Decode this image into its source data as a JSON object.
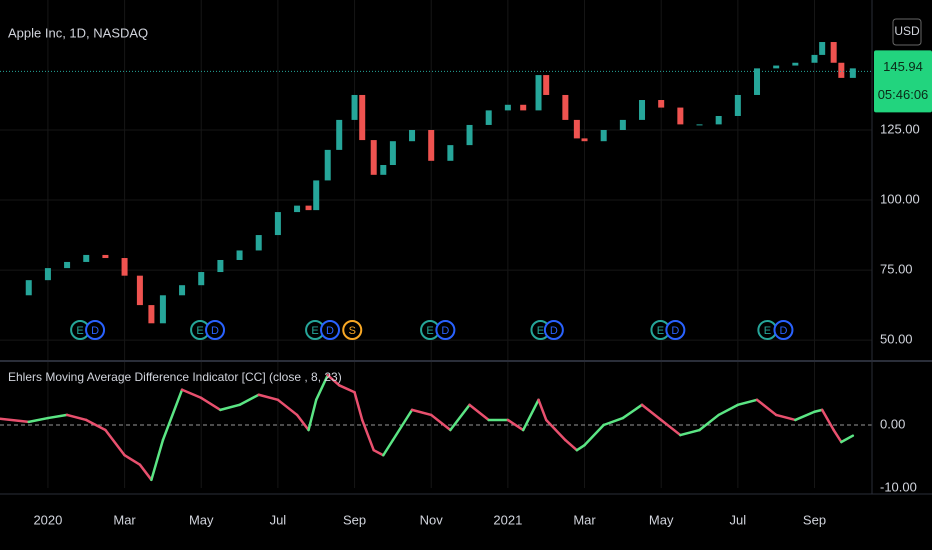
{
  "chart_data": [
    {
      "type": "candlestick",
      "title": "Apple Inc, 1D, NASDAQ",
      "x": [
        -1.25,
        -0.5,
        0,
        0.5,
        1,
        1.5,
        2,
        2.4,
        2.7,
        3,
        3.5,
        4,
        4.5,
        5,
        5.5,
        6,
        6.5,
        6.8,
        7,
        7.3,
        7.6,
        8,
        8.2,
        8.5,
        8.75,
        9,
        9.5,
        10,
        10.5,
        11,
        11.5,
        12,
        12.4,
        12.8,
        13,
        13.5,
        13.8,
        14,
        14.5,
        15,
        15.5,
        16,
        16.5,
        17,
        17.5,
        18,
        18.5,
        19,
        19.5,
        20,
        20.2,
        20.5,
        20.7,
        21
      ],
      "values": [
        66,
        71.4,
        75.7,
        77.9,
        80.4,
        79.3,
        73,
        62.5,
        56,
        66,
        69.6,
        74.3,
        78.6,
        82,
        87.5,
        95.7,
        98,
        96.4,
        107,
        117.9,
        128.6,
        137.5,
        121.4,
        109,
        112.5,
        121,
        125,
        114,
        119.6,
        126.8,
        132,
        134,
        132,
        144.6,
        137.5,
        128.6,
        122,
        121,
        125,
        128.6,
        135.7,
        133,
        127,
        127,
        130,
        137.5,
        147,
        148,
        149,
        151.8,
        156.4,
        149,
        143.6,
        147
      ],
      "up_color": "#26a69a",
      "down_color": "#ef5350",
      "xlim": [
        -1.25,
        21.5
      ],
      "ylim": [
        42.9,
        171.4
      ],
      "yticks": [
        {
          "value": 125,
          "label": "125.00"
        },
        {
          "value": 100,
          "label": "100.00"
        },
        {
          "value": 75,
          "label": "75.00"
        },
        {
          "value": 50,
          "label": "50.00"
        }
      ],
      "grid": true,
      "currency": "USD",
      "last_price": {
        "value": 145.94,
        "label": "145.94"
      },
      "countdown": "05:46:06",
      "events": [
        {
          "x": 0.84,
          "label": "E"
        },
        {
          "x": 1.23,
          "label": "D"
        },
        {
          "x": 3.97,
          "label": "E"
        },
        {
          "x": 4.36,
          "label": "D"
        },
        {
          "x": 6.97,
          "label": "E"
        },
        {
          "x": 7.36,
          "label": "D"
        },
        {
          "x": 7.94,
          "label": "S"
        },
        {
          "x": 9.97,
          "label": "E"
        },
        {
          "x": 10.37,
          "label": "D"
        },
        {
          "x": 12.85,
          "label": "E"
        },
        {
          "x": 13.2,
          "label": "D"
        },
        {
          "x": 15.98,
          "label": "E"
        },
        {
          "x": 16.37,
          "label": "D"
        },
        {
          "x": 18.77,
          "label": "E"
        },
        {
          "x": 19.19,
          "label": "D"
        }
      ],
      "event_colors": {
        "E": "#26a69a",
        "D": "#2962ff",
        "S": "#f9a825"
      }
    },
    {
      "type": "line",
      "title": "Ehlers Moving Average Difference Indicator [CC] (close , 8, 23)",
      "x": [
        -1.25,
        -0.5,
        0,
        0.5,
        1,
        1.5,
        2,
        2.4,
        2.7,
        3,
        3.5,
        4,
        4.5,
        5,
        5.5,
        6,
        6.5,
        6.8,
        7,
        7.3,
        7.6,
        8,
        8.2,
        8.5,
        8.75,
        9,
        9.5,
        10,
        10.5,
        11,
        11.5,
        12,
        12.4,
        12.8,
        13,
        13.5,
        13.8,
        14,
        14.5,
        15,
        15.5,
        16,
        16.5,
        17,
        17.5,
        18,
        18.5,
        19,
        19.5,
        20,
        20.2,
        20.5,
        20.7,
        21
      ],
      "values": [
        1,
        0.5,
        1.1,
        1.6,
        0.8,
        -0.8,
        -4.8,
        -6.3,
        -8.7,
        -2.4,
        5.6,
        4.3,
        2.4,
        3.2,
        4.8,
        4,
        1.6,
        -0.8,
        4,
        7.9,
        6.3,
        5.2,
        0.8,
        -4,
        -4.8,
        -2.4,
        2.4,
        1.6,
        -0.8,
        3.2,
        0.8,
        0.8,
        -0.8,
        4,
        0.8,
        -2.4,
        -4,
        -3.2,
        0,
        1.1,
        3.2,
        0.8,
        -1.6,
        -0.8,
        1.6,
        3.2,
        4,
        1.6,
        0.8,
        2.1,
        2.4,
        -0.8,
        -2.7,
        -1.7
      ],
      "up_color": "#5be584",
      "down_color": "#e8506e",
      "xlim": [
        -1.25,
        21.5
      ],
      "ylim": [
        -10,
        10
      ],
      "yticks": [
        {
          "value": 0,
          "label": "0.00"
        },
        {
          "value": -10,
          "label": "-10.00"
        }
      ],
      "zero_line": true,
      "xticks": [
        {
          "value": 0,
          "label": "2020"
        },
        {
          "value": 2,
          "label": "Mar"
        },
        {
          "value": 4,
          "label": "May"
        },
        {
          "value": 6,
          "label": "Jul"
        },
        {
          "value": 8,
          "label": "Sep"
        },
        {
          "value": 10,
          "label": "Nov"
        },
        {
          "value": 12,
          "label": "2021"
        },
        {
          "value": 14,
          "label": "Mar"
        },
        {
          "value": 16,
          "label": "May"
        },
        {
          "value": 18,
          "label": "Jul"
        },
        {
          "value": 20,
          "label": "Sep"
        }
      ]
    }
  ]
}
